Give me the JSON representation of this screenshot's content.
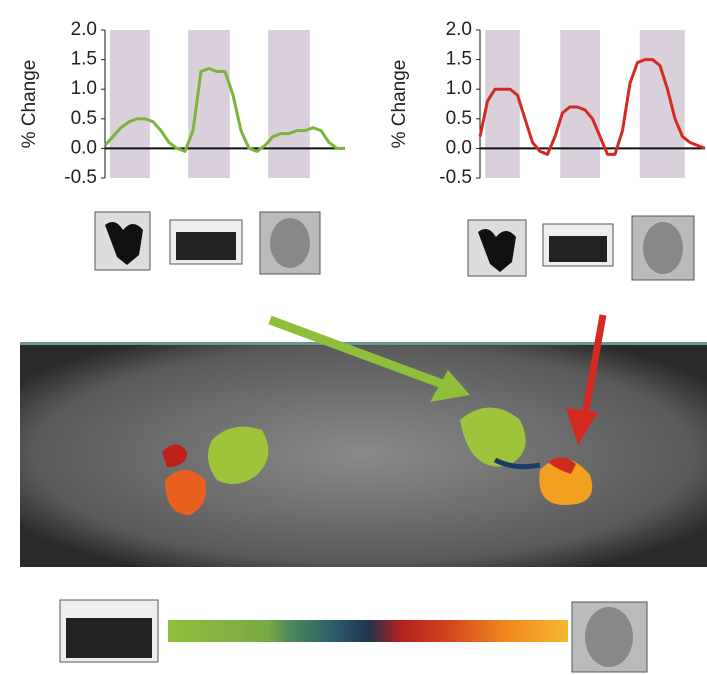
{
  "chart_data": [
    {
      "type": "line",
      "ylabel": "% Change",
      "color": "#7db33a",
      "x": [
        0,
        1,
        2,
        3,
        4,
        5,
        6,
        7,
        8,
        9,
        10,
        11,
        12,
        13,
        14,
        15,
        16,
        17,
        18,
        19,
        20,
        21,
        22,
        23,
        24,
        25,
        26,
        27,
        28,
        29,
        30
      ],
      "series": [
        {
          "color": "#7db33a",
          "values": [
            0.05,
            0.2,
            0.35,
            0.45,
            0.5,
            0.5,
            0.45,
            0.3,
            0.1,
            0,
            -0.05,
            0.3,
            1.3,
            1.35,
            1.3,
            1.3,
            0.9,
            0.3,
            0,
            -0.05,
            0.05,
            0.2,
            0.25,
            0.25,
            0.3,
            0.3,
            0.35,
            0.3,
            0.1,
            0,
            0
          ]
        }
      ],
      "stimulus_blocks": [
        [
          0.6,
          5.6
        ],
        [
          10.4,
          15.6
        ],
        [
          20.4,
          25.6
        ]
      ],
      "xlim": [
        0,
        30
      ],
      "ylim": [
        -0.5,
        2.0
      ],
      "yticks": [
        {
          "value": 2.0,
          "label": "2.0"
        },
        1.5,
        {
          "value": 1.0,
          "label": "1.0"
        },
        0.5,
        {
          "value": 0,
          "label": "0.0"
        },
        -0.5
      ]
    },
    {
      "type": "line",
      "ylabel": "% Change",
      "color": "#d42a22",
      "x": [
        0,
        1,
        2,
        3,
        4,
        5,
        6,
        7,
        8,
        9,
        10,
        11,
        12,
        13,
        14,
        15,
        16,
        17,
        18,
        19,
        20,
        21,
        22,
        23,
        24,
        25,
        26,
        27,
        28,
        29,
        30
      ],
      "series": [
        {
          "color": "#d42a22",
          "values": [
            0.2,
            0.8,
            1.0,
            1.0,
            1.0,
            0.9,
            0.5,
            0.1,
            -0.05,
            -0.1,
            0.2,
            0.6,
            0.7,
            0.7,
            0.65,
            0.5,
            0.2,
            -0.1,
            -0.1,
            0.3,
            1.1,
            1.45,
            1.5,
            1.5,
            1.4,
            1.0,
            0.5,
            0.2,
            0.1,
            0.05,
            0
          ]
        }
      ],
      "stimulus_blocks": [
        [
          0.7,
          5.3
        ],
        [
          10.7,
          16
        ],
        [
          21.3,
          27.3
        ]
      ],
      "xlim": [
        0,
        30
      ],
      "ylim": [
        -0.5,
        2.0
      ],
      "yticks": [
        {
          "value": 2.0,
          "label": "2.0"
        },
        1.5,
        {
          "value": 1.0,
          "label": "1.0"
        },
        0.5,
        {
          "value": 0,
          "label": "0.0"
        },
        -0.5
      ]
    }
  ]
}
